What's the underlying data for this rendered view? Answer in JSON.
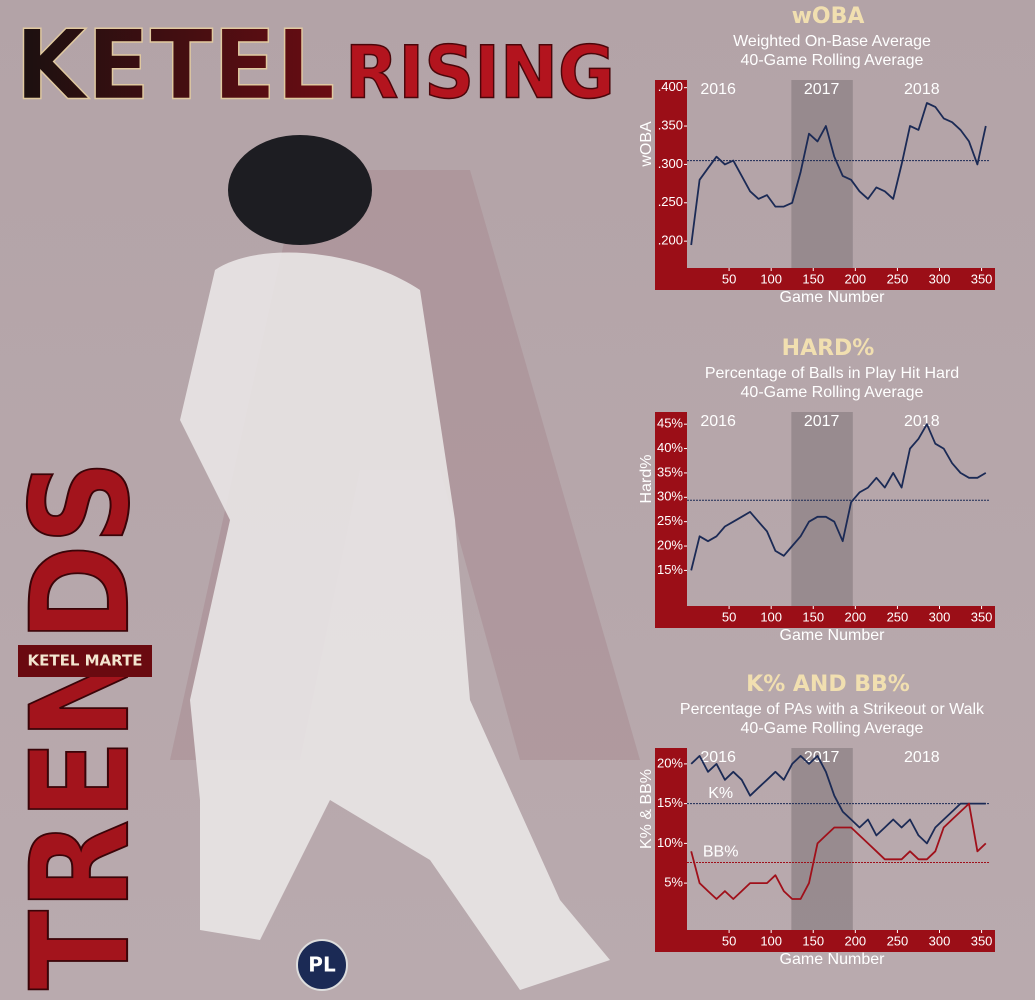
{
  "header": {
    "title_left": "KETEL",
    "title_right": "RISING",
    "vertical": "TRENDS",
    "player": "KETEL MARTE",
    "logo": "PL"
  },
  "chart_data": [
    {
      "type": "line",
      "title": "wOBA",
      "subtitle": [
        "Weighted On-Base Average",
        "40-Game Rolling Average"
      ],
      "x_label": "Game Number",
      "y_label": "wOBA",
      "annotations": [
        "2016",
        "2017",
        "2018"
      ],
      "shaded_x": [
        124,
        197
      ],
      "reference_lines": [
        {
          "value": 0.305,
          "color": "#1b2a55"
        }
      ],
      "x": [
        5,
        15,
        25,
        35,
        45,
        55,
        65,
        75,
        85,
        95,
        105,
        115,
        125,
        135,
        145,
        155,
        165,
        175,
        185,
        195,
        205,
        215,
        225,
        235,
        245,
        255,
        265,
        275,
        285,
        295,
        305,
        315,
        325,
        335,
        345,
        355
      ],
      "series": [
        {
          "name": "wOBA",
          "color": "#1b2a55",
          "values": [
            0.195,
            0.28,
            0.295,
            0.31,
            0.3,
            0.305,
            0.285,
            0.265,
            0.255,
            0.26,
            0.245,
            0.245,
            0.25,
            0.29,
            0.34,
            0.33,
            0.35,
            0.31,
            0.285,
            0.28,
            0.265,
            0.255,
            0.27,
            0.265,
            0.255,
            0.3,
            0.35,
            0.345,
            0.38,
            0.375,
            0.36,
            0.355,
            0.345,
            0.33,
            0.3,
            0.35
          ]
        }
      ],
      "xlim": [
        0,
        360
      ],
      "xticks": [
        50,
        100,
        150,
        200,
        250,
        300,
        350
      ],
      "ylim": [
        0.165,
        0.41
      ],
      "yticks": [
        {
          "value": 0.2,
          "label": ".200"
        },
        {
          "value": 0.25,
          "label": ".250"
        },
        {
          "value": 0.3,
          "label": ".300"
        },
        {
          "value": 0.35,
          "label": ".350"
        },
        {
          "value": 0.4,
          "label": ".400"
        }
      ]
    },
    {
      "type": "line",
      "title": "HARD%",
      "subtitle": [
        "Percentage of Balls in Play Hit Hard",
        "40-Game Rolling Average"
      ],
      "x_label": "Game Number",
      "y_label": "Hard%",
      "annotations": [
        "2016",
        "2017",
        "2018"
      ],
      "shaded_x": [
        124,
        197
      ],
      "reference_lines": [
        {
          "value": 29.4,
          "color": "#1b2a55"
        }
      ],
      "x": [
        5,
        15,
        25,
        35,
        45,
        55,
        65,
        75,
        85,
        95,
        105,
        115,
        125,
        135,
        145,
        155,
        165,
        175,
        185,
        195,
        205,
        215,
        225,
        235,
        245,
        255,
        265,
        275,
        285,
        295,
        305,
        315,
        325,
        335,
        345,
        355
      ],
      "series": [
        {
          "name": "Hard%",
          "color": "#1b2a55",
          "values": [
            15,
            22,
            21,
            22,
            24,
            25,
            26,
            27,
            25,
            23,
            19,
            18,
            20,
            22,
            25,
            26,
            26,
            25,
            21,
            29,
            31,
            32,
            34,
            32,
            35,
            32,
            40,
            42,
            45,
            41,
            40,
            37,
            35,
            34,
            34,
            35
          ]
        }
      ],
      "xlim": [
        0,
        360
      ],
      "xticks": [
        50,
        100,
        150,
        200,
        250,
        300,
        350
      ],
      "ylim": [
        7.7,
        47.5
      ],
      "yticks": [
        {
          "value": 15,
          "label": "15%"
        },
        {
          "value": 20,
          "label": "20%"
        },
        {
          "value": 25,
          "label": "25%"
        },
        {
          "value": 30,
          "label": "30%"
        },
        {
          "value": 35,
          "label": "35%"
        },
        {
          "value": 40,
          "label": "40%"
        },
        {
          "value": 45,
          "label": "45%"
        }
      ]
    },
    {
      "type": "line",
      "title": "K% AND BB%",
      "subtitle": [
        "Percentage of PAs with a Strikeout or Walk",
        "40-Game Rolling Average"
      ],
      "x_label": "Game Number",
      "y_label": "K% & BB%",
      "annotations": [
        "2016",
        "2017",
        "2018"
      ],
      "shaded_x": [
        124,
        197
      ],
      "reference_lines": [
        {
          "value": 15,
          "color": "#1b2a55",
          "label": "K%"
        },
        {
          "value": 7.6,
          "color": "#a0101a",
          "label": "BB%"
        }
      ],
      "x": [
        5,
        15,
        25,
        35,
        45,
        55,
        65,
        75,
        85,
        95,
        105,
        115,
        125,
        135,
        145,
        155,
        165,
        175,
        185,
        195,
        205,
        215,
        225,
        235,
        245,
        255,
        265,
        275,
        285,
        295,
        305,
        315,
        325,
        335,
        345,
        355
      ],
      "series": [
        {
          "name": "K%",
          "color": "#1b2a55",
          "values": [
            20,
            21,
            19,
            20,
            18,
            19,
            18,
            16,
            17,
            18,
            19,
            18,
            20,
            21,
            20,
            21,
            19,
            16,
            14,
            13,
            12,
            13,
            11,
            12,
            13,
            12,
            13,
            11,
            10,
            12,
            13,
            14,
            15,
            15,
            15,
            15
          ]
        },
        {
          "name": "BB%",
          "color": "#a0101a",
          "values": [
            9,
            5,
            4,
            3,
            4,
            3,
            4,
            5,
            5,
            5,
            6,
            4,
            3,
            3,
            5,
            10,
            11,
            12,
            12,
            12,
            11,
            10,
            9,
            8,
            8,
            8,
            9,
            8,
            8,
            9,
            12,
            13,
            14,
            15,
            9,
            10
          ]
        }
      ],
      "xlim": [
        0,
        360
      ],
      "xticks": [
        50,
        100,
        150,
        200,
        250,
        300,
        350
      ],
      "ylim": [
        -0.9,
        22
      ],
      "yticks": [
        {
          "value": 5,
          "label": "5%"
        },
        {
          "value": 10,
          "label": "10%"
        },
        {
          "value": 15,
          "label": "15%"
        },
        {
          "value": 20,
          "label": "20%"
        }
      ]
    }
  ]
}
